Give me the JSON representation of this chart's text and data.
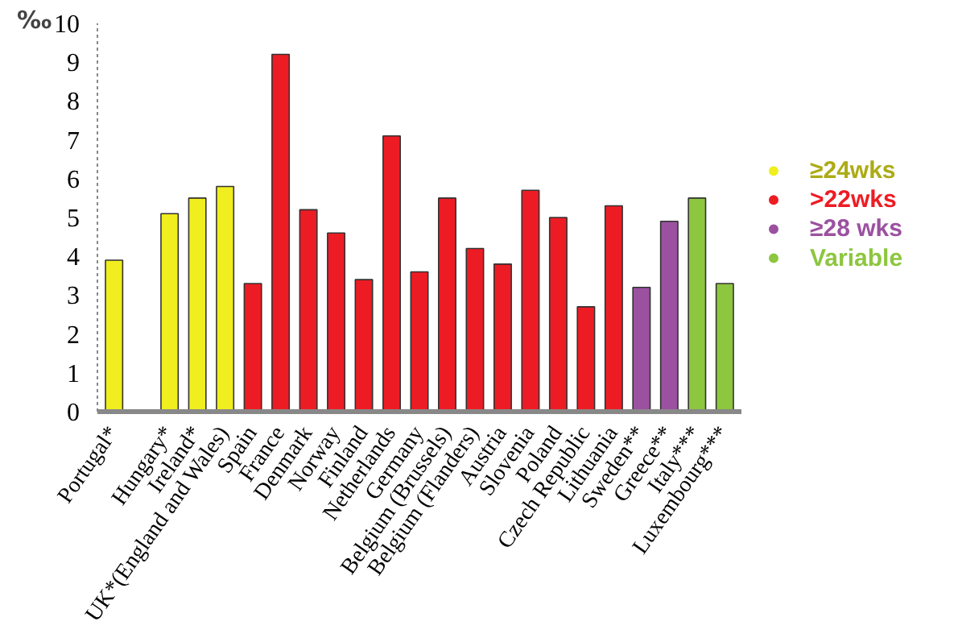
{
  "chart_data": {
    "type": "bar",
    "ylabel": "‰",
    "categories": [
      "Portugal*",
      null,
      "Hungary*",
      "Ireland*",
      "UK*(England and Wales)",
      "Spain",
      "France",
      "Denmark",
      "Norway",
      "Finland",
      "Netherlands",
      "Germany",
      "Belgium (Brussels)",
      "Belgium (Flanders)",
      "Austria",
      "Slovenia",
      "Poland",
      "Czech Republic",
      "Lithuania",
      "Sweden**",
      "Greece**",
      "Italy***",
      "Luxembourg***"
    ],
    "series": [
      {
        "name": "≥24wks",
        "color": "#f0ee1e",
        "values": [
          3.9,
          null,
          5.1,
          5.5,
          5.8,
          null,
          null,
          null,
          null,
          null,
          null,
          null,
          null,
          null,
          null,
          null,
          null,
          null,
          null,
          null,
          null,
          null,
          null
        ]
      },
      {
        "name": ">22wks",
        "color": "#ed1c24",
        "values": [
          null,
          null,
          null,
          null,
          null,
          3.3,
          9.2,
          5.2,
          4.6,
          3.4,
          7.1,
          3.6,
          5.5,
          4.2,
          3.8,
          5.7,
          5.0,
          2.7,
          5.3,
          null,
          null,
          null,
          null
        ]
      },
      {
        "name": "≥28 wks",
        "color": "#9b51a0",
        "values": [
          null,
          null,
          null,
          null,
          null,
          null,
          null,
          null,
          null,
          null,
          null,
          null,
          null,
          null,
          null,
          null,
          null,
          null,
          null,
          3.2,
          4.9,
          null,
          null
        ]
      },
      {
        "name": "Variable",
        "color": "#8dc63f",
        "values": [
          null,
          null,
          null,
          null,
          null,
          null,
          null,
          null,
          null,
          null,
          null,
          null,
          null,
          null,
          null,
          null,
          null,
          null,
          null,
          null,
          null,
          5.5,
          3.3
        ]
      }
    ],
    "ylim": [
      0,
      10
    ],
    "yticks": [
      0,
      1,
      2,
      3,
      4,
      5,
      6,
      7,
      8,
      9,
      10
    ],
    "grid": false,
    "legend": "right"
  }
}
